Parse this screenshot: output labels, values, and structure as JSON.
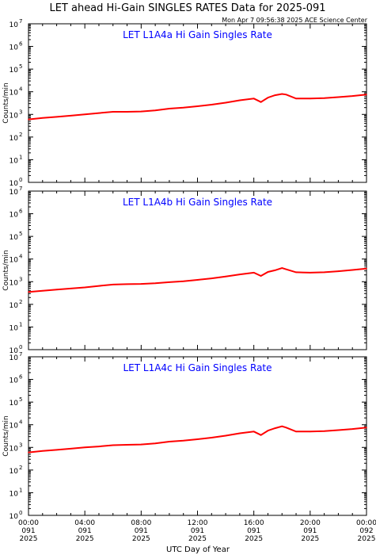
{
  "title": "LET ahead Hi-Gain SINGLES RATES Data for 2025-091",
  "timestamp": "Mon Apr  7 09:56:38 2025 ACE Science Center",
  "xlabel": "UTC Day of Year",
  "colors": {
    "line": "#ff0000",
    "panel_title": "#0000ff",
    "axes": "#000000"
  },
  "chart_data": [
    {
      "type": "line",
      "title": "LET L1A4a Hi Gain Singles Rate",
      "ylabel": "Counts/min",
      "yscale": "log",
      "ylim": [
        1,
        10000000
      ],
      "xlim": [
        0,
        24
      ],
      "x": [
        0,
        1,
        2,
        3,
        4,
        5,
        6,
        7,
        8,
        9,
        10,
        11,
        12,
        13,
        14,
        15,
        16,
        16.5,
        17,
        17.5,
        18,
        18.3,
        19,
        20,
        21,
        22,
        23,
        24
      ],
      "y": [
        600,
        700,
        780,
        880,
        1000,
        1150,
        1300,
        1300,
        1350,
        1500,
        1800,
        2000,
        2300,
        2700,
        3300,
        4200,
        5000,
        3500,
        5500,
        7000,
        8000,
        7500,
        5000,
        5000,
        5200,
        5800,
        6500,
        7500
      ]
    },
    {
      "type": "line",
      "title": "LET L1A4b Hi Gain Singles Rate",
      "ylabel": "Counts/min",
      "yscale": "log",
      "ylim": [
        1,
        10000000
      ],
      "xlim": [
        0,
        24
      ],
      "x": [
        0,
        1,
        2,
        3,
        4,
        5,
        6,
        7,
        8,
        9,
        10,
        11,
        12,
        13,
        14,
        15,
        16,
        16.5,
        17,
        17.5,
        18,
        18.3,
        19,
        20,
        21,
        22,
        23,
        24
      ],
      "y": [
        350,
        400,
        450,
        500,
        560,
        650,
        750,
        780,
        800,
        850,
        950,
        1050,
        1200,
        1400,
        1700,
        2100,
        2500,
        1800,
        2700,
        3200,
        4000,
        3500,
        2600,
        2500,
        2600,
        2900,
        3300,
        3800
      ]
    },
    {
      "type": "line",
      "title": "LET L1A4c Hi Gain Singles Rate",
      "ylabel": "Counts/min",
      "yscale": "log",
      "ylim": [
        1,
        10000000
      ],
      "xlim": [
        0,
        24
      ],
      "x": [
        0,
        1,
        2,
        3,
        4,
        5,
        6,
        7,
        8,
        9,
        10,
        11,
        12,
        13,
        14,
        15,
        16,
        16.5,
        17,
        17.5,
        18,
        18.3,
        19,
        20,
        21,
        22,
        23,
        24
      ],
      "y": [
        600,
        700,
        780,
        880,
        1000,
        1100,
        1250,
        1300,
        1350,
        1500,
        1800,
        2000,
        2300,
        2700,
        3300,
        4200,
        5000,
        3500,
        5500,
        7000,
        8500,
        7500,
        5000,
        5000,
        5200,
        5800,
        6500,
        7500
      ]
    }
  ],
  "x_ticks": [
    {
      "x": 0,
      "lines": [
        "00:00",
        "091",
        "2025"
      ]
    },
    {
      "x": 4,
      "lines": [
        "04:00",
        "091",
        "2025"
      ]
    },
    {
      "x": 8,
      "lines": [
        "08:00",
        "091",
        "2025"
      ]
    },
    {
      "x": 12,
      "lines": [
        "12:00",
        "091",
        "2025"
      ]
    },
    {
      "x": 16,
      "lines": [
        "16:00",
        "091",
        "2025"
      ]
    },
    {
      "x": 20,
      "lines": [
        "20:00",
        "091",
        "2025"
      ]
    },
    {
      "x": 24,
      "lines": [
        "00:00",
        "092",
        "2025"
      ]
    }
  ],
  "y_ticks": [
    {
      "v": 1,
      "base": "10",
      "exp": "0"
    },
    {
      "v": 10,
      "base": "10",
      "exp": "1"
    },
    {
      "v": 100,
      "base": "10",
      "exp": "2"
    },
    {
      "v": 1000,
      "base": "10",
      "exp": "3"
    },
    {
      "v": 10000,
      "base": "10",
      "exp": "4"
    },
    {
      "v": 100000,
      "base": "10",
      "exp": "5"
    },
    {
      "v": 1000000,
      "base": "10",
      "exp": "6"
    },
    {
      "v": 10000000,
      "base": "10",
      "exp": "7"
    }
  ]
}
